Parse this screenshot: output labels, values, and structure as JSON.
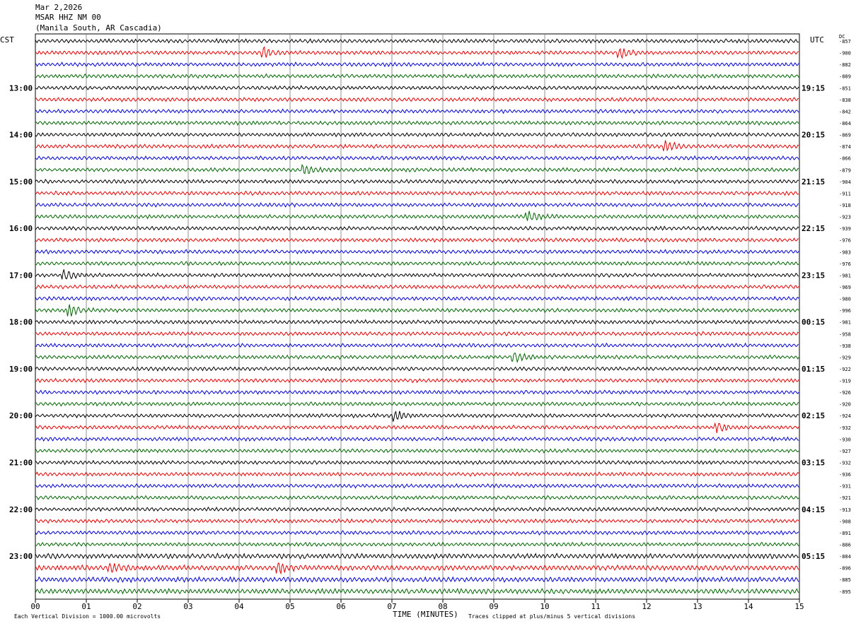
{
  "header": {
    "date": "Mar 2,2026",
    "station": "MSAR HHZ NM 00",
    "location": "(Manila South, AR Cascadia)"
  },
  "left_axis_label": "CST",
  "right_axis_label": "UTC",
  "dc_label": "DC",
  "left_hour_labels": [
    "13:00",
    "14:00",
    "15:00",
    "16:00",
    "17:00",
    "18:00",
    "19:00",
    "20:00",
    "21:00",
    "22:00",
    "23:00"
  ],
  "right_hour_labels": [
    "19:15",
    "20:15",
    "21:15",
    "22:15",
    "23:15",
    "00:15",
    "01:15",
    "02:15",
    "03:15",
    "04:15",
    "05:15"
  ],
  "dc_values": [
    "-857",
    "-900",
    "-882",
    "-889",
    "-851",
    "-838",
    "-842",
    "-864",
    "-869",
    "-874",
    "-866",
    "-879",
    "-904",
    "-911",
    "-918",
    "-923",
    "-939",
    "-976",
    "-983",
    "-976",
    "-981",
    "-969",
    "-980",
    "-996",
    "-981",
    "-958",
    "-938",
    "-929",
    "-922",
    "-919",
    "-926",
    "-920",
    "-924",
    "-932",
    "-930",
    "-927",
    "-932",
    "-936",
    "-931",
    "-921",
    "-913",
    "-908",
    "-891",
    "-886",
    "-884",
    "-896",
    "-885",
    "-895"
  ],
  "x_tick_labels": [
    "00",
    "01",
    "02",
    "03",
    "04",
    "05",
    "06",
    "07",
    "08",
    "09",
    "10",
    "11",
    "12",
    "13",
    "14",
    "15"
  ],
  "xlabel": "TIME (MINUTES)",
  "footer_left": "Each Vertical Division = 1000.00 microvolts",
  "footer_right": "Traces clipped at plus/minus 5 vertical divisions",
  "trace_colors": [
    "#000000",
    "#dd0000",
    "#0000cc",
    "#006400"
  ],
  "chart_data": {
    "type": "line",
    "title": "MSAR HHZ NM 00",
    "xlabel": "TIME (MINUTES)",
    "x_range": [
      0,
      15
    ],
    "traces_per_hour": 4,
    "minutes_per_trace": 15,
    "first_trace_cst": "12:00",
    "trace_count": 48,
    "events": [
      {
        "row": 1,
        "minute": 4.5
      },
      {
        "row": 1,
        "minute": 11.5
      },
      {
        "row": 9,
        "minute": 12.4
      },
      {
        "row": 11,
        "minute": 5.3
      },
      {
        "row": 15,
        "minute": 9.7
      },
      {
        "row": 20,
        "minute": 0.6
      },
      {
        "row": 23,
        "minute": 0.7
      },
      {
        "row": 27,
        "minute": 9.4
      },
      {
        "row": 32,
        "minute": 7.1
      },
      {
        "row": 33,
        "minute": 13.4
      },
      {
        "row": 45,
        "minute": 1.5
      },
      {
        "row": 45,
        "minute": 4.8
      }
    ]
  }
}
